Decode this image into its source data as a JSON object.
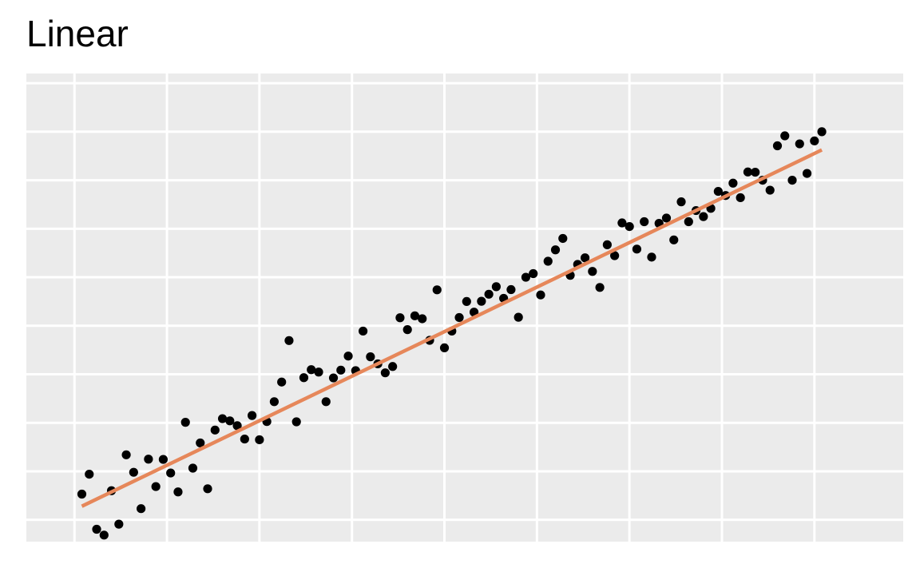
{
  "title": "Linear",
  "chart_data": {
    "type": "scatter",
    "title": "Linear",
    "xlabel": "",
    "ylabel": "",
    "grid": true,
    "xlim": [
      -1.3,
      22.4
    ],
    "ylim": [
      -0.9,
      18.4
    ],
    "x_gridlines": [
      0,
      2.5,
      5,
      7.5,
      10,
      12.5,
      15,
      17.5,
      20
    ],
    "y_gridlines": [
      0,
      1,
      2,
      3,
      4,
      5,
      6,
      7,
      8,
      9
    ],
    "y_grid_step": 2,
    "points": [
      [
        0.2,
        1.06
      ],
      [
        0.4,
        1.88
      ],
      [
        0.6,
        -0.39
      ],
      [
        0.8,
        -0.63
      ],
      [
        1.0,
        1.2
      ],
      [
        1.2,
        -0.18
      ],
      [
        1.4,
        2.68
      ],
      [
        1.6,
        1.96
      ],
      [
        1.8,
        0.46
      ],
      [
        2.0,
        2.5
      ],
      [
        2.2,
        1.37
      ],
      [
        2.4,
        2.49
      ],
      [
        2.6,
        1.93
      ],
      [
        2.8,
        1.15
      ],
      [
        3.0,
        4.02
      ],
      [
        3.2,
        2.13
      ],
      [
        3.4,
        3.17
      ],
      [
        3.6,
        1.28
      ],
      [
        3.8,
        3.7
      ],
      [
        4.0,
        4.17
      ],
      [
        4.2,
        4.08
      ],
      [
        4.4,
        3.88
      ],
      [
        4.6,
        3.33
      ],
      [
        4.8,
        4.3
      ],
      [
        5.0,
        3.3
      ],
      [
        5.2,
        4.05
      ],
      [
        5.4,
        4.87
      ],
      [
        5.6,
        5.68
      ],
      [
        5.8,
        7.39
      ],
      [
        6.0,
        4.04
      ],
      [
        6.2,
        5.86
      ],
      [
        6.4,
        6.19
      ],
      [
        6.6,
        6.09
      ],
      [
        6.8,
        4.87
      ],
      [
        7.0,
        5.85
      ],
      [
        7.2,
        6.17
      ],
      [
        7.4,
        6.75
      ],
      [
        7.6,
        6.15
      ],
      [
        7.8,
        7.78
      ],
      [
        8.0,
        6.72
      ],
      [
        8.2,
        6.43
      ],
      [
        8.4,
        6.06
      ],
      [
        8.6,
        6.32
      ],
      [
        8.8,
        8.33
      ],
      [
        9.0,
        7.84
      ],
      [
        9.2,
        8.41
      ],
      [
        9.4,
        8.29
      ],
      [
        9.6,
        7.4
      ],
      [
        9.8,
        9.48
      ],
      [
        10.0,
        7.09
      ],
      [
        10.2,
        7.78
      ],
      [
        10.4,
        8.34
      ],
      [
        10.6,
        9.0
      ],
      [
        10.8,
        8.56
      ],
      [
        11.0,
        9.01
      ],
      [
        11.2,
        9.3
      ],
      [
        11.4,
        9.61
      ],
      [
        11.6,
        9.13
      ],
      [
        11.8,
        9.49
      ],
      [
        12.0,
        8.35
      ],
      [
        12.2,
        10.0
      ],
      [
        12.4,
        10.15
      ],
      [
        12.6,
        9.27
      ],
      [
        12.8,
        10.66
      ],
      [
        13.0,
        11.13
      ],
      [
        13.2,
        11.6
      ],
      [
        13.4,
        10.08
      ],
      [
        13.6,
        10.53
      ],
      [
        13.8,
        10.8
      ],
      [
        14.0,
        10.24
      ],
      [
        14.2,
        9.58
      ],
      [
        14.4,
        11.34
      ],
      [
        14.6,
        10.89
      ],
      [
        14.8,
        12.24
      ],
      [
        15.0,
        12.09
      ],
      [
        15.2,
        11.16
      ],
      [
        15.4,
        12.29
      ],
      [
        15.6,
        10.83
      ],
      [
        15.8,
        12.22
      ],
      [
        16.0,
        12.44
      ],
      [
        16.2,
        11.54
      ],
      [
        16.4,
        13.11
      ],
      [
        16.6,
        12.29
      ],
      [
        16.8,
        12.75
      ],
      [
        17.0,
        12.5
      ],
      [
        17.2,
        12.84
      ],
      [
        17.4,
        13.54
      ],
      [
        17.6,
        13.37
      ],
      [
        17.8,
        13.88
      ],
      [
        18.0,
        13.28
      ],
      [
        18.2,
        14.34
      ],
      [
        18.4,
        14.33
      ],
      [
        18.6,
        14.0
      ],
      [
        18.8,
        13.59
      ],
      [
        19.0,
        15.42
      ],
      [
        19.2,
        15.83
      ],
      [
        19.4,
        14.0
      ],
      [
        19.6,
        15.5
      ],
      [
        19.8,
        14.28
      ],
      [
        20.0,
        15.62
      ],
      [
        20.2,
        16.0
      ]
    ],
    "trend_line": {
      "from": [
        0.2,
        0.56
      ],
      "to": [
        20.2,
        15.25
      ],
      "color": "#E6875A"
    },
    "point_color": "#000000",
    "panel_color": "#EBEBEB",
    "grid_color": "#FFFFFF"
  }
}
